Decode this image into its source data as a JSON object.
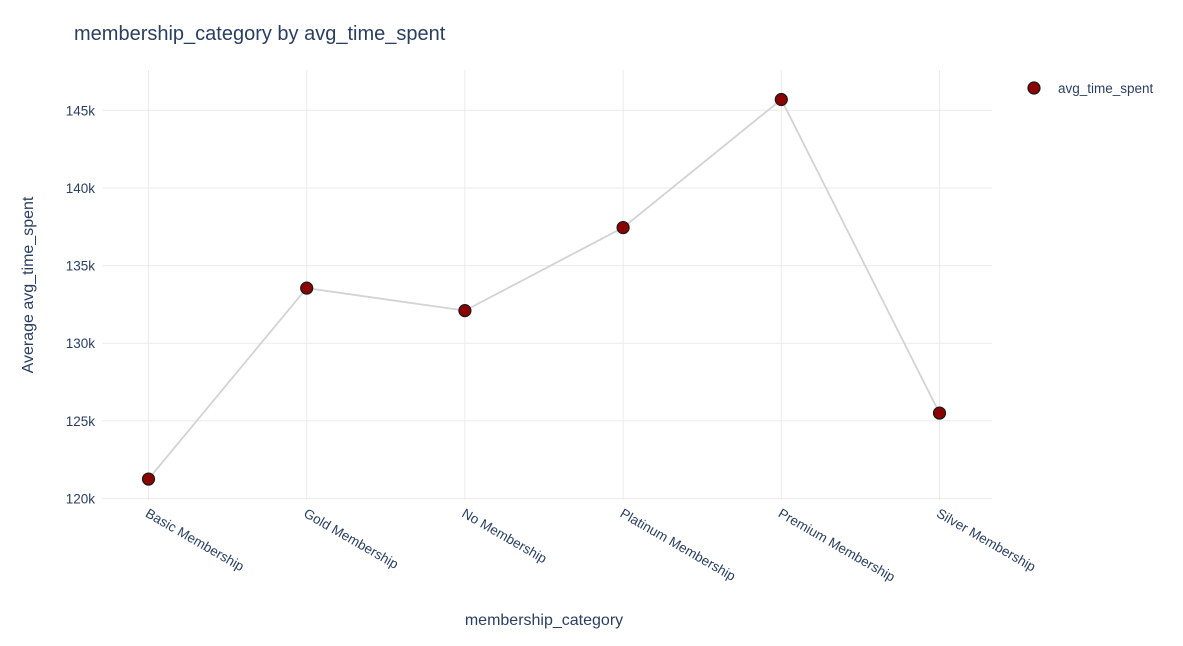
{
  "chart_data": {
    "type": "line",
    "title": "membership_category by avg_time_spent",
    "xlabel": "membership_category",
    "ylabel": "Average avg_time_spent",
    "categories": [
      "Basic Membership",
      "Gold Membership",
      "No Membership",
      "Platinum Membership",
      "Premium Membership",
      "Silver Membership"
    ],
    "series": [
      {
        "name": "avg_time_spent",
        "values": [
          121250,
          133550,
          132100,
          137450,
          145700,
          125500
        ]
      }
    ],
    "yticks": [
      120000,
      125000,
      130000,
      135000,
      140000,
      145000
    ],
    "ytick_labels": [
      "120k",
      "125k",
      "130k",
      "135k",
      "140k",
      "145k"
    ],
    "ylim": [
      119900,
      147600
    ],
    "grid": true,
    "legend_position": "top-right",
    "colors": {
      "marker": "#8b0000",
      "line": "#d3d3d3",
      "grid": "#ebebeb",
      "text": "#2a3f5f"
    }
  }
}
